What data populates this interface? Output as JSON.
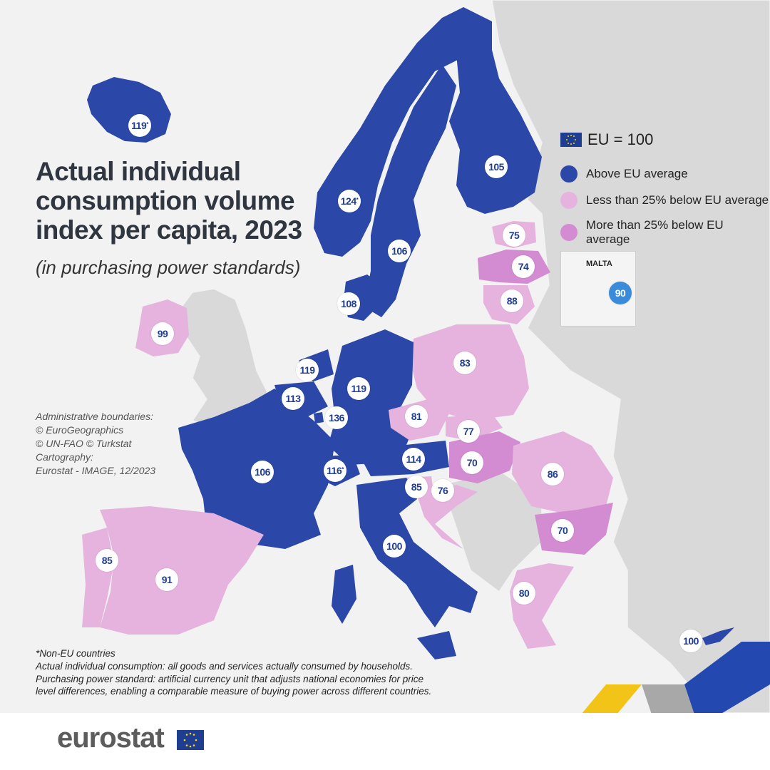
{
  "title": {
    "line1": "Actual individual",
    "line2": "consumption volume",
    "line3": "index per capita, 2023",
    "subtitle": "(in purchasing power standards)"
  },
  "legend": {
    "eu_label": "EU = 100",
    "items": [
      {
        "label": "Above EU average",
        "color": "#2b47a8"
      },
      {
        "label": "Less than 25% below EU average",
        "color": "#e5b3de"
      },
      {
        "label": "More than 25% below EU average",
        "color": "#d38bd2"
      }
    ]
  },
  "inset": {
    "label": "MALTA",
    "value": "90"
  },
  "credits": [
    "Administrative boundaries:",
    "© EuroGeographics",
    "© UN-FAO © Turkstat",
    "Cartography:",
    "Eurostat - IMAGE, 12/2023"
  ],
  "notes": [
    "*Non-EU countries",
    "Actual individual consumption: all goods and services actually consumed by households.",
    "Purchasing power standard: artificial currency unit that adjusts national economies for price level differences, enabling a comparable measure of buying power across different countries."
  ],
  "logo": "eurostat",
  "countries": [
    {
      "name": "Iceland",
      "value": "119",
      "star": true,
      "category": "above"
    },
    {
      "name": "Norway",
      "value": "124",
      "star": true,
      "category": "above"
    },
    {
      "name": "Sweden",
      "value": "106",
      "category": "above"
    },
    {
      "name": "Finland",
      "value": "105",
      "category": "above"
    },
    {
      "name": "Estonia",
      "value": "75",
      "category": "less"
    },
    {
      "name": "Latvia",
      "value": "74",
      "category": "more"
    },
    {
      "name": "Lithuania",
      "value": "88",
      "category": "less"
    },
    {
      "name": "Denmark",
      "value": "108",
      "category": "above"
    },
    {
      "name": "Ireland",
      "value": "99",
      "category": "less"
    },
    {
      "name": "Netherlands",
      "value": "119",
      "category": "above"
    },
    {
      "name": "Belgium",
      "value": "113",
      "category": "above"
    },
    {
      "name": "Luxembourg",
      "value": "136",
      "category": "above"
    },
    {
      "name": "Germany",
      "value": "119",
      "category": "above"
    },
    {
      "name": "Poland",
      "value": "83",
      "category": "less"
    },
    {
      "name": "Czechia",
      "value": "81",
      "category": "less"
    },
    {
      "name": "Slovakia",
      "value": "77",
      "category": "less"
    },
    {
      "name": "Austria",
      "value": "114",
      "category": "above"
    },
    {
      "name": "Switzerland",
      "value": "116",
      "star": true,
      "category": "above"
    },
    {
      "name": "France",
      "value": "106",
      "category": "above"
    },
    {
      "name": "Hungary",
      "value": "70",
      "category": "more"
    },
    {
      "name": "Romania",
      "value": "86",
      "category": "less"
    },
    {
      "name": "Slovenia",
      "value": "85",
      "category": "less"
    },
    {
      "name": "Croatia",
      "value": "76",
      "category": "less"
    },
    {
      "name": "Bulgaria",
      "value": "70",
      "category": "more"
    },
    {
      "name": "Italy",
      "value": "100",
      "category": "above"
    },
    {
      "name": "Portugal",
      "value": "85",
      "category": "less"
    },
    {
      "name": "Spain",
      "value": "91",
      "category": "less"
    },
    {
      "name": "Greece",
      "value": "80",
      "category": "less"
    },
    {
      "name": "Cyprus",
      "value": "100",
      "category": "above"
    }
  ]
}
